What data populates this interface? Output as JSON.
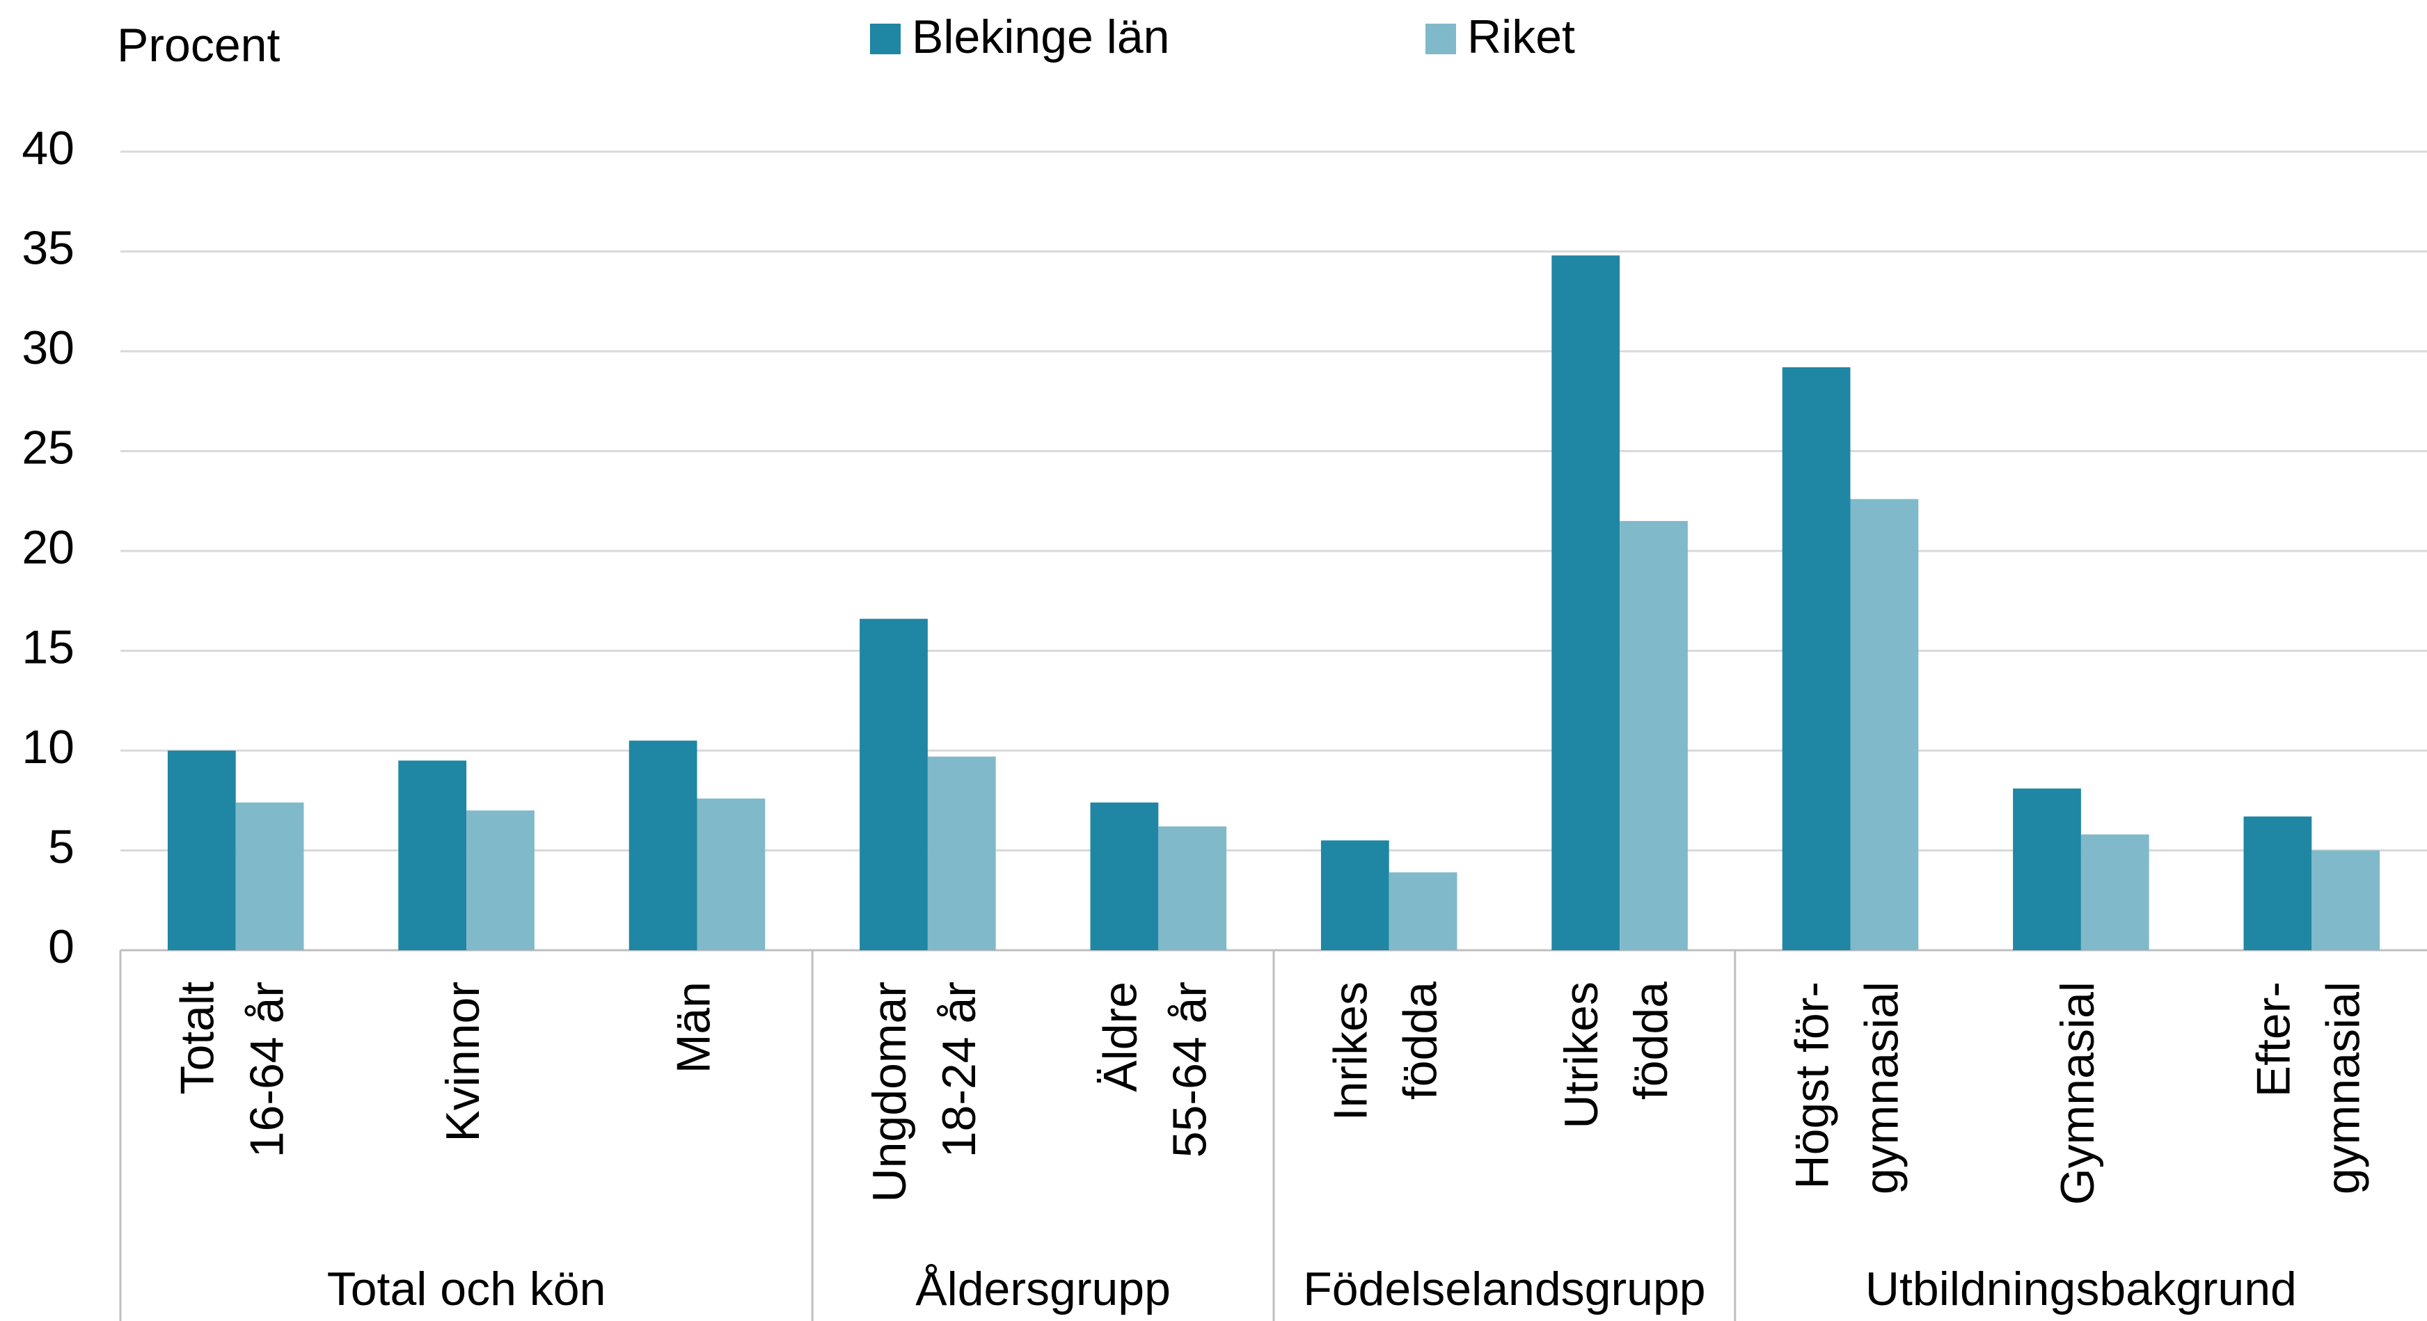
{
  "chart_data": {
    "type": "bar",
    "y_label": "Procent",
    "groups": [
      {
        "name": "Total och kön",
        "categories": [
          [
            "Totalt",
            "16-64 år"
          ],
          [
            "Kvinnor"
          ],
          [
            "Män"
          ]
        ]
      },
      {
        "name": "Åldersgrupp",
        "categories": [
          [
            "Ungdomar",
            "18-24 år"
          ],
          [
            "Äldre",
            "55-64 år"
          ]
        ]
      },
      {
        "name": "Födelselandsgrupp",
        "categories": [
          [
            "Inrikes",
            "födda"
          ],
          [
            "Utrikes",
            "födda"
          ]
        ]
      },
      {
        "name": "Utbildningsbakgrund",
        "categories": [
          [
            "Högst för-",
            "gymnasial"
          ],
          [
            "Gymnasial"
          ],
          [
            "Efter-",
            "gymnasial"
          ]
        ]
      }
    ],
    "series": [
      {
        "name": "Blekinge  län",
        "color": "#1f86a3",
        "values": [
          10.0,
          9.5,
          10.5,
          16.6,
          7.4,
          5.5,
          34.8,
          29.2,
          8.1,
          6.7
        ]
      },
      {
        "name": "Riket",
        "color": "#80b9ca",
        "values": [
          7.4,
          7.0,
          7.6,
          9.7,
          6.2,
          3.9,
          21.5,
          22.6,
          5.8,
          5.0
        ]
      }
    ],
    "ylim": [
      0,
      40
    ],
    "yticks": [
      0,
      5,
      10,
      15,
      20,
      25,
      30,
      35,
      40
    ],
    "grid": true
  }
}
